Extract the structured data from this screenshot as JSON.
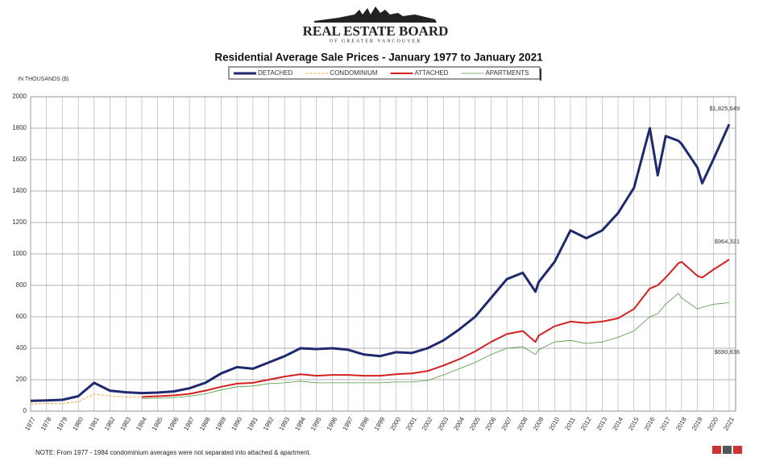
{
  "header": {
    "org": "REAL ESTATE BOARD",
    "org_sub": "OF GREATER VANCOUVER"
  },
  "note": "NOTE:  From 1977 - 1984 condominium averages were not separated into attached & apartment.",
  "chart_data": {
    "type": "line",
    "title": "Residential Average Sale Prices  -  January 1977 to January 2021",
    "y_label": "IN THOUSANDS ($)",
    "x": [
      1977,
      1978,
      1979,
      1980,
      1981,
      1982,
      1983,
      1984,
      1985,
      1986,
      1987,
      1988,
      1989,
      1990,
      1991,
      1992,
      1993,
      1994,
      1995,
      1996,
      1997,
      1998,
      1999,
      2000,
      2001,
      2002,
      2003,
      2004,
      2005,
      2006,
      2007,
      2008,
      2008.8,
      2009,
      2010,
      2011,
      2012,
      2013,
      2014,
      2015,
      2016,
      2016.5,
      2017,
      2017.8,
      2018,
      2019,
      2019.3,
      2020,
      2021
    ],
    "xlim": [
      1977,
      2021
    ],
    "xticks": [
      1977,
      1978,
      1979,
      1980,
      1981,
      1982,
      1983,
      1984,
      1985,
      1986,
      1987,
      1988,
      1989,
      1990,
      1991,
      1992,
      1993,
      1994,
      1995,
      1996,
      1997,
      1998,
      1999,
      2000,
      2001,
      2002,
      2003,
      2004,
      2005,
      2006,
      2007,
      2008,
      2009,
      2010,
      2011,
      2012,
      2013,
      2014,
      2015,
      2016,
      2017,
      2018,
      2019,
      2020,
      2021
    ],
    "ylim": [
      0,
      2000
    ],
    "yticks": [
      0,
      200,
      400,
      600,
      800,
      1000,
      1200,
      1400,
      1600,
      1800,
      2000
    ],
    "grid": true,
    "legend": "top",
    "series": [
      {
        "name": "DETACHED",
        "color": "#1f2a6e",
        "values": [
          65,
          68,
          72,
          95,
          180,
          130,
          120,
          115,
          118,
          125,
          145,
          180,
          240,
          280,
          270,
          310,
          350,
          400,
          395,
          400,
          390,
          360,
          350,
          375,
          370,
          400,
          450,
          520,
          600,
          720,
          840,
          880,
          760,
          820,
          950,
          1150,
          1100,
          1150,
          1260,
          1420,
          1800,
          1500,
          1750,
          1720,
          1700,
          1550,
          1450,
          1600,
          1825
        ]
      },
      {
        "name": "CONDOMINIUM",
        "color": "#f0a830",
        "values": [
          45,
          48,
          50,
          60,
          110,
          95,
          90,
          88,
          null,
          null,
          null,
          null,
          null,
          null,
          null,
          null,
          null,
          null,
          null,
          null,
          null,
          null,
          null,
          null,
          null,
          null,
          null,
          null,
          null,
          null,
          null,
          null,
          null,
          null,
          null,
          null,
          null,
          null,
          null,
          null,
          null,
          null,
          null,
          null,
          null,
          null,
          null,
          null,
          null
        ]
      },
      {
        "name": "ATTACHED",
        "color": "#d42020",
        "values": [
          null,
          null,
          null,
          null,
          null,
          null,
          null,
          90,
          95,
          100,
          110,
          130,
          155,
          175,
          180,
          200,
          220,
          235,
          225,
          230,
          230,
          225,
          225,
          235,
          240,
          255,
          290,
          330,
          380,
          440,
          490,
          510,
          440,
          480,
          540,
          570,
          560,
          570,
          590,
          650,
          780,
          800,
          850,
          940,
          950,
          860,
          850,
          900,
          964
        ]
      },
      {
        "name": "APARTMENTS",
        "color": "#4a9a3a",
        "values": [
          null,
          null,
          null,
          null,
          null,
          null,
          null,
          80,
          82,
          85,
          95,
          110,
          135,
          155,
          160,
          175,
          180,
          190,
          180,
          180,
          180,
          180,
          180,
          185,
          185,
          195,
          230,
          270,
          310,
          360,
          400,
          410,
          360,
          390,
          440,
          450,
          430,
          440,
          470,
          510,
          600,
          620,
          680,
          750,
          720,
          650,
          660,
          680,
          690
        ]
      }
    ],
    "annotations": [
      "$1,825,649",
      "$964,321",
      "$690,836"
    ]
  }
}
